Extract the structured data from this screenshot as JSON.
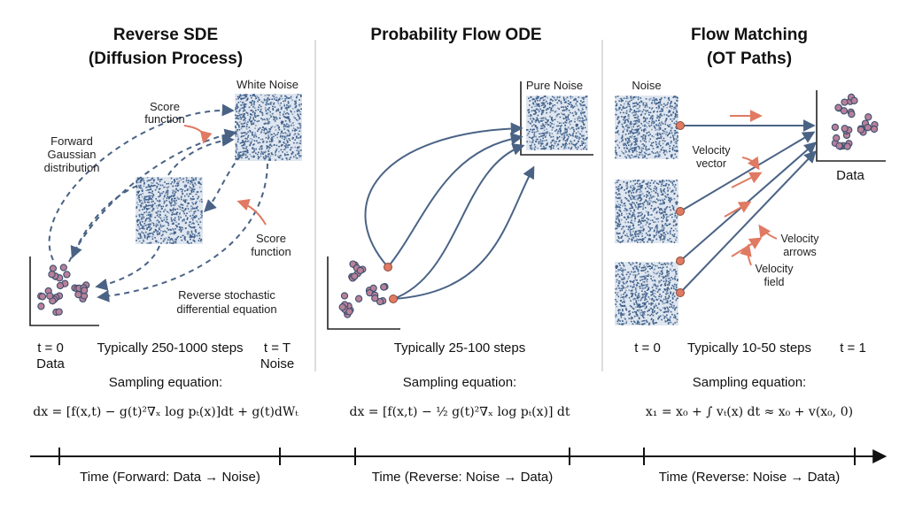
{
  "panels": {
    "sde": {
      "title1": "Reverse SDE",
      "title2": "(Diffusion Process)",
      "white_noise": "White Noise",
      "score_top_1": "Score",
      "score_top_2": "function",
      "forward_1": "Forward",
      "forward_2": "Gaussian",
      "forward_3": "distribution",
      "score_right_1": "Score",
      "score_right_2": "function",
      "reverse_1": "Reverse stochastic",
      "reverse_2": "differential equation",
      "t0": "t = 0",
      "data": "Data",
      "steps": "Typically 250-1000 steps",
      "tT": "t = T",
      "noise": "Noise",
      "sampling": "Sampling equation:",
      "equation": "dx = [f(x,t) − g(t)²∇ₓ log pₜ(x)]dt + g(t)dWₜ"
    },
    "ode": {
      "title": "Probability Flow ODE",
      "pure_noise": "Pure Noise",
      "steps": "Typically 25-100 steps",
      "sampling": "Sampling equation:",
      "equation": "dx = [f(x,t) − ½ g(t)²∇ₓ log pₜ(x)] dt"
    },
    "fm": {
      "title1": "Flow Matching",
      "title2": "(OT Paths)",
      "noise": "Noise",
      "data": "Data",
      "velocity_vector_1": "Velocity",
      "velocity_vector_2": "vector",
      "velocity_arrows_1": "Velocity",
      "velocity_arrows_2": "arrows",
      "velocity_field_1": "Velocity",
      "velocity_field_2": "field",
      "t0": "t = 0",
      "steps": "Typically 10-50 steps",
      "t1": "t = 1",
      "sampling": "Sampling equation:",
      "equation": "x₁ = x₀ + ∫ vₜ(x) dt ≈ x₀ + v(x₀, 0)"
    }
  },
  "timeline": {
    "forward": "Time (Forward: Data → Noise)",
    "reverse1": "Time (Reverse: Noise → Data)",
    "reverse2": "Time (Reverse: Noise → Data)"
  },
  "colors": {
    "flow": "#4a6385",
    "annotation": "#e07a62",
    "noise": "#3e5f8a",
    "data_point": "#b98099"
  }
}
